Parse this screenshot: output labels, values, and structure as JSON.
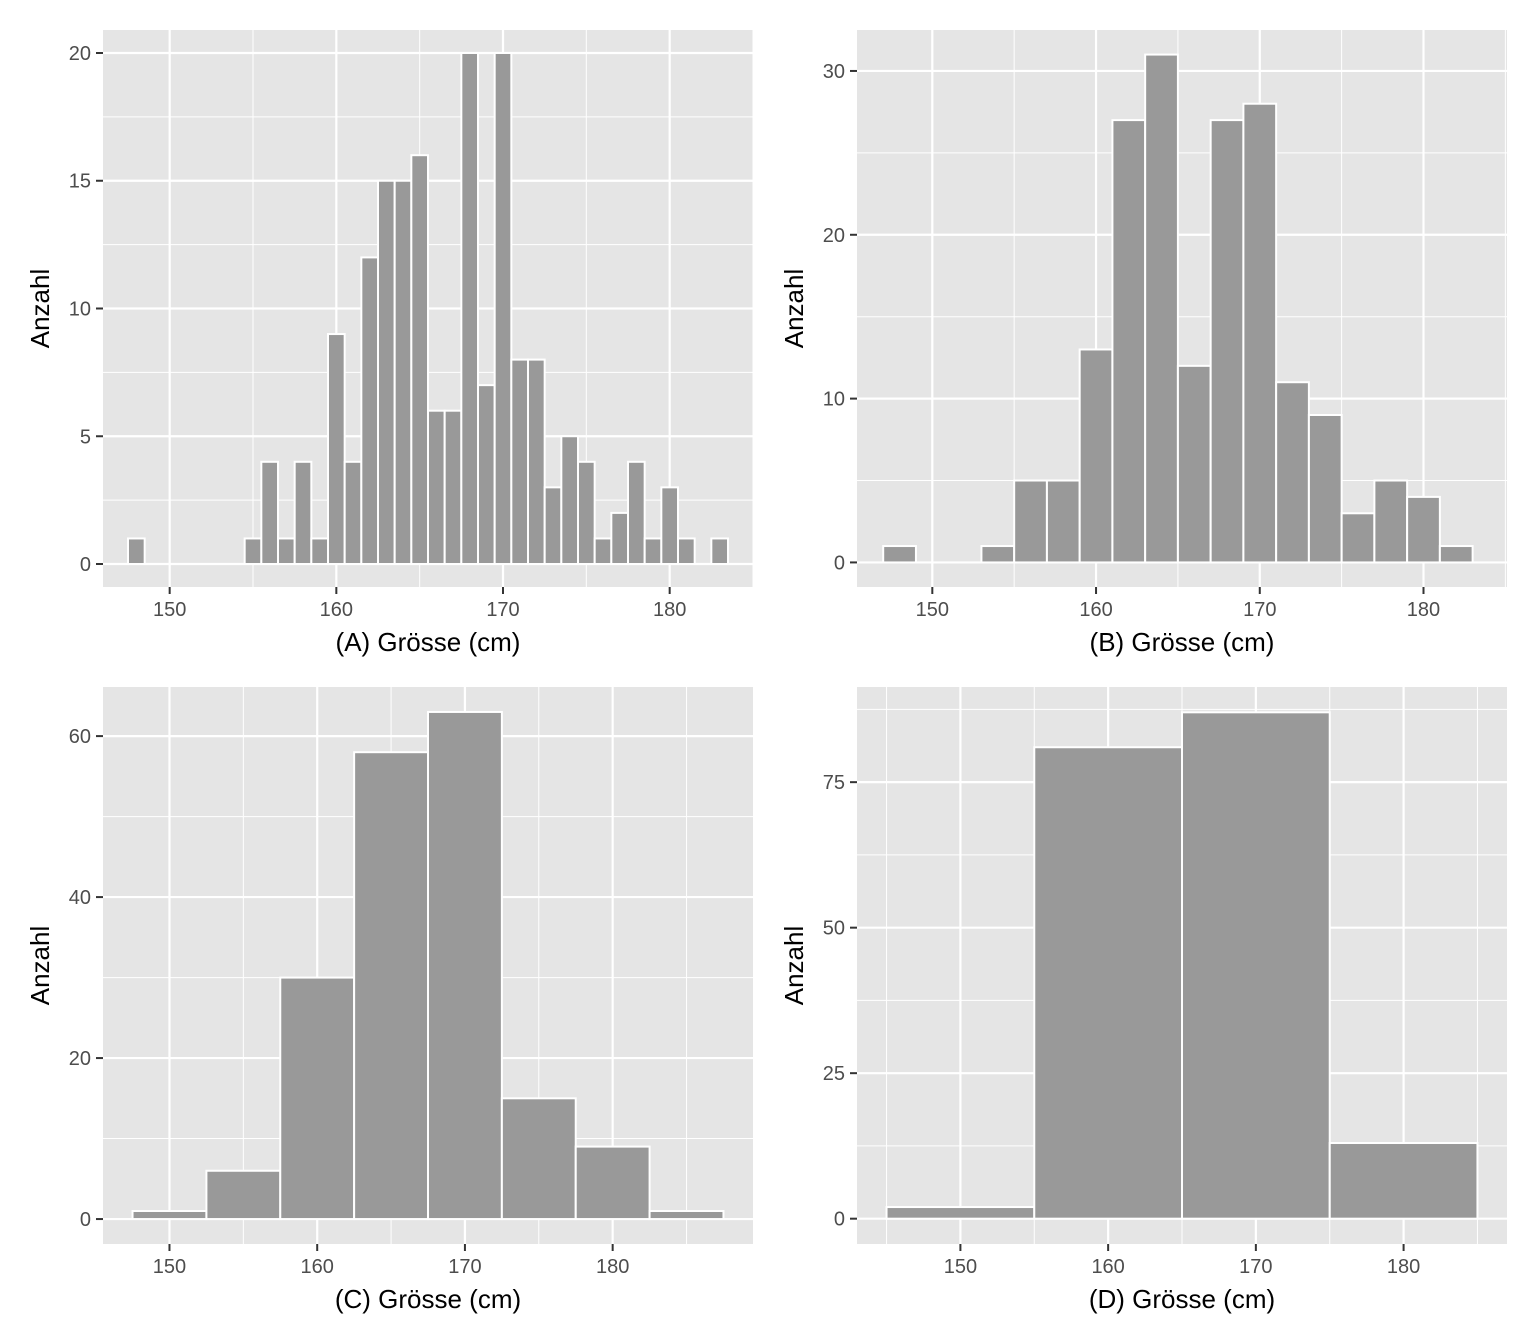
{
  "colors": {
    "panel_background": "#e5e5e5",
    "grid": "#ffffff",
    "bar_fill": "#999999",
    "bar_outline": "#ffffff",
    "tick_text": "#4d4d4d",
    "axis_title": "#000000"
  },
  "chart_data": [
    {
      "type": "bar",
      "subtype": "histogram",
      "xlabel": "(A) Grösse (cm)",
      "ylabel": "Anzahl",
      "xlim": [
        146,
        185
      ],
      "ylim": [
        -0.9,
        20.9
      ],
      "xticks": [
        150,
        160,
        170,
        180
      ],
      "yticks": [
        0,
        5,
        10,
        15,
        20
      ],
      "grid": true,
      "bins": [
        {
          "x0": 147.5,
          "x1": 148.5,
          "count": 1
        },
        {
          "x0": 154.5,
          "x1": 155.5,
          "count": 1
        },
        {
          "x0": 155.5,
          "x1": 156.5,
          "count": 4
        },
        {
          "x0": 156.5,
          "x1": 157.5,
          "count": 1
        },
        {
          "x0": 157.5,
          "x1": 158.5,
          "count": 4
        },
        {
          "x0": 158.5,
          "x1": 159.5,
          "count": 1
        },
        {
          "x0": 159.5,
          "x1": 160.5,
          "count": 9
        },
        {
          "x0": 160.5,
          "x1": 161.5,
          "count": 4
        },
        {
          "x0": 161.5,
          "x1": 162.5,
          "count": 12
        },
        {
          "x0": 162.5,
          "x1": 163.5,
          "count": 15
        },
        {
          "x0": 163.5,
          "x1": 164.5,
          "count": 15
        },
        {
          "x0": 164.5,
          "x1": 165.5,
          "count": 16
        },
        {
          "x0": 165.5,
          "x1": 166.5,
          "count": 6
        },
        {
          "x0": 166.5,
          "x1": 167.5,
          "count": 6
        },
        {
          "x0": 167.5,
          "x1": 168.5,
          "count": 20
        },
        {
          "x0": 168.5,
          "x1": 169.5,
          "count": 7
        },
        {
          "x0": 169.5,
          "x1": 170.5,
          "count": 20
        },
        {
          "x0": 170.5,
          "x1": 171.5,
          "count": 8
        },
        {
          "x0": 171.5,
          "x1": 172.5,
          "count": 8
        },
        {
          "x0": 172.5,
          "x1": 173.5,
          "count": 3
        },
        {
          "x0": 173.5,
          "x1": 174.5,
          "count": 5
        },
        {
          "x0": 174.5,
          "x1": 175.5,
          "count": 4
        },
        {
          "x0": 175.5,
          "x1": 176.5,
          "count": 1
        },
        {
          "x0": 176.5,
          "x1": 177.5,
          "count": 2
        },
        {
          "x0": 177.5,
          "x1": 178.5,
          "count": 4
        },
        {
          "x0": 178.5,
          "x1": 179.5,
          "count": 1
        },
        {
          "x0": 179.5,
          "x1": 180.5,
          "count": 3
        },
        {
          "x0": 180.5,
          "x1": 181.5,
          "count": 1
        },
        {
          "x0": 182.5,
          "x1": 183.5,
          "count": 1
        }
      ]
    },
    {
      "type": "bar",
      "subtype": "histogram",
      "xlabel": "(B) Grösse (cm)",
      "ylabel": "Anzahl",
      "xlim": [
        145.4,
        185.1
      ],
      "ylim": [
        -1.5,
        32.5
      ],
      "xticks": [
        150,
        160,
        170,
        180
      ],
      "yticks": [
        0,
        10,
        20,
        30
      ],
      "grid": true,
      "bins": [
        {
          "x0": 147.0,
          "x1": 149.0,
          "count": 1
        },
        {
          "x0": 153.0,
          "x1": 155.0,
          "count": 1
        },
        {
          "x0": 155.0,
          "x1": 157.0,
          "count": 5
        },
        {
          "x0": 157.0,
          "x1": 159.0,
          "count": 5
        },
        {
          "x0": 159.0,
          "x1": 161.0,
          "count": 13
        },
        {
          "x0": 161.0,
          "x1": 163.0,
          "count": 27
        },
        {
          "x0": 163.0,
          "x1": 165.0,
          "count": 31
        },
        {
          "x0": 165.0,
          "x1": 167.0,
          "count": 12
        },
        {
          "x0": 167.0,
          "x1": 169.0,
          "count": 27
        },
        {
          "x0": 169.0,
          "x1": 171.0,
          "count": 28
        },
        {
          "x0": 171.0,
          "x1": 173.0,
          "count": 11
        },
        {
          "x0": 173.0,
          "x1": 175.0,
          "count": 9
        },
        {
          "x0": 175.0,
          "x1": 177.0,
          "count": 3
        },
        {
          "x0": 177.0,
          "x1": 179.0,
          "count": 5
        },
        {
          "x0": 179.0,
          "x1": 181.0,
          "count": 4
        },
        {
          "x0": 181.0,
          "x1": 183.0,
          "count": 1
        }
      ]
    },
    {
      "type": "bar",
      "subtype": "histogram",
      "xlabel": "(C) Grösse (cm)",
      "ylabel": "Anzahl",
      "xlim": [
        145.5,
        189.5
      ],
      "ylim": [
        -3.1,
        66.1
      ],
      "xticks": [
        150,
        160,
        170,
        180
      ],
      "yticks": [
        0,
        20,
        40,
        60
      ],
      "grid": true,
      "bins": [
        {
          "x0": 147.5,
          "x1": 152.5,
          "count": 1
        },
        {
          "x0": 152.5,
          "x1": 157.5,
          "count": 6
        },
        {
          "x0": 157.5,
          "x1": 162.5,
          "count": 30
        },
        {
          "x0": 162.5,
          "x1": 167.5,
          "count": 58
        },
        {
          "x0": 167.5,
          "x1": 172.5,
          "count": 63
        },
        {
          "x0": 172.5,
          "x1": 177.5,
          "count": 15
        },
        {
          "x0": 177.5,
          "x1": 182.5,
          "count": 9
        },
        {
          "x0": 182.5,
          "x1": 187.5,
          "count": 1
        }
      ]
    },
    {
      "type": "bar",
      "subtype": "histogram",
      "xlabel": "(D) Grösse (cm)",
      "ylabel": "Anzahl",
      "xlim": [
        143.0,
        187.0
      ],
      "ylim": [
        -4.35,
        91.35
      ],
      "xticks": [
        150,
        160,
        170,
        180
      ],
      "yticks": [
        0,
        25,
        50,
        75
      ],
      "grid": true,
      "bins": [
        {
          "x0": 145.0,
          "x1": 155.0,
          "count": 2
        },
        {
          "x0": 155.0,
          "x1": 165.0,
          "count": 81
        },
        {
          "x0": 165.0,
          "x1": 175.0,
          "count": 87
        },
        {
          "x0": 175.0,
          "x1": 185.0,
          "count": 13
        }
      ]
    }
  ]
}
